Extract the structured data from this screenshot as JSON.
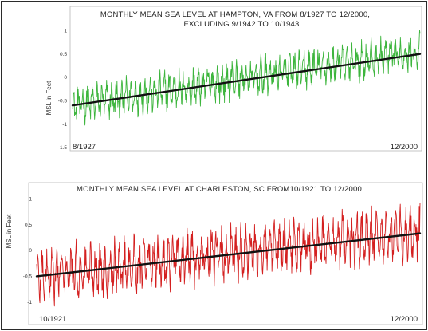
{
  "chart_data": [
    {
      "type": "line",
      "title": "MONTHLY MEAN SEA LEVEL AT HAMPTON, VA FROM 8/1927 TO 12/2000,",
      "subtitle": "EXCLUDING 9/1942 TO 10/1943",
      "ylabel": "MSL in Feet",
      "xlabel": "",
      "x_start_label": "8/1927",
      "x_end_label": "12/2000",
      "ylim": [
        -1.5,
        1.5
      ],
      "yticks": [
        {
          "value": 1,
          "label": "1"
        },
        {
          "value": 0.5,
          "label": "0.5"
        },
        {
          "value": 0,
          "label": "0"
        },
        {
          "value": -0.5,
          "label": "-0.5"
        },
        {
          "value": -1,
          "label": "-1"
        },
        {
          "value": -1.5,
          "label": "-1.5"
        }
      ],
      "grid": false,
      "series": [
        {
          "color": "#3db53d",
          "monthly_mean_sea_level_start": -0.6,
          "monthly_mean_sea_level_end": 0.55,
          "monthly_variation_amplitude": 0.3,
          "months": 868
        },
        {
          "color": "#111111",
          "linear_trend": {
            "start_value": -0.6,
            "end_value": 0.5
          }
        }
      ]
    },
    {
      "type": "line",
      "title": "MONTHLY MEAN SEA LEVEL AT CHARLESTON, SC FROM10/1921 TO 12/2000",
      "ylabel": "MSL in Feet",
      "xlabel": "",
      "x_start_label": "10/1921",
      "x_end_label": "12/2000",
      "ylim": [
        -1.25,
        1.25
      ],
      "yticks": [
        {
          "value": 1,
          "label": "1"
        },
        {
          "value": 0.5,
          "label": "0.5"
        },
        {
          "value": 0,
          "label": "0"
        },
        {
          "value": -0.5,
          "label": "-0.5"
        },
        {
          "value": -1,
          "label": "-1"
        }
      ],
      "grid": false,
      "series": [
        {
          "color": "#d42020",
          "monthly_mean_sea_level_start": -0.5,
          "monthly_mean_sea_level_end": 0.35,
          "monthly_variation_amplitude": 0.4,
          "months": 951
        },
        {
          "color": "#111111",
          "linear_trend": {
            "start_value": -0.5,
            "end_value": 0.33
          }
        }
      ]
    }
  ]
}
